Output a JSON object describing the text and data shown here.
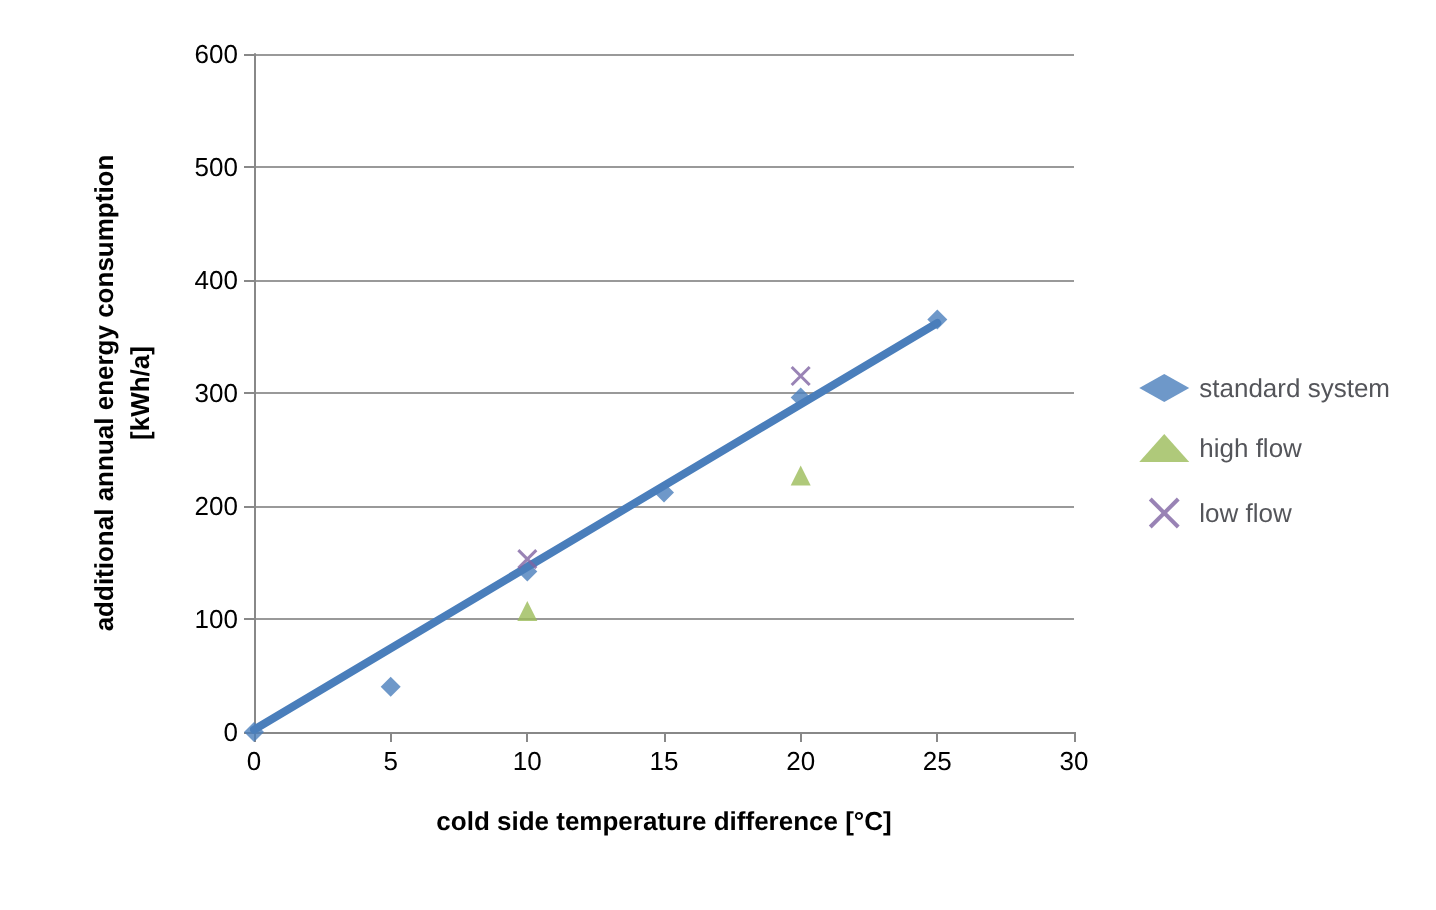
{
  "chart_data": {
    "type": "scatter",
    "xlabel": "cold side temperature difference [°C]",
    "ylabel": "additional annual energy consumption\n[kWh/a]",
    "xlim": [
      0,
      30
    ],
    "xticks": [
      0,
      5,
      10,
      15,
      20,
      25,
      30
    ],
    "ylim": [
      0,
      600
    ],
    "yticks": [
      0,
      100,
      200,
      300,
      400,
      500,
      600
    ],
    "grid": "y",
    "legend": "right",
    "series": [
      {
        "name": "standard system",
        "color": "#4a7ebb",
        "marker": "diamond",
        "x": [
          0,
          5,
          10,
          15,
          20,
          25
        ],
        "values": [
          0,
          40,
          142,
          212,
          296,
          365
        ]
      },
      {
        "name": "high flow",
        "color": "#9bbb59",
        "marker": "triangle",
        "x": [
          10,
          20
        ],
        "values": [
          107,
          227
        ]
      },
      {
        "name": "low flow",
        "color": "#8064a2",
        "marker": "cross",
        "x": [
          10,
          20
        ],
        "values": [
          153,
          315
        ]
      },
      {
        "type": "line",
        "color": "#4a7ebb",
        "marker": "none",
        "x": [
          0,
          25
        ],
        "values": [
          2,
          362
        ]
      }
    ]
  }
}
